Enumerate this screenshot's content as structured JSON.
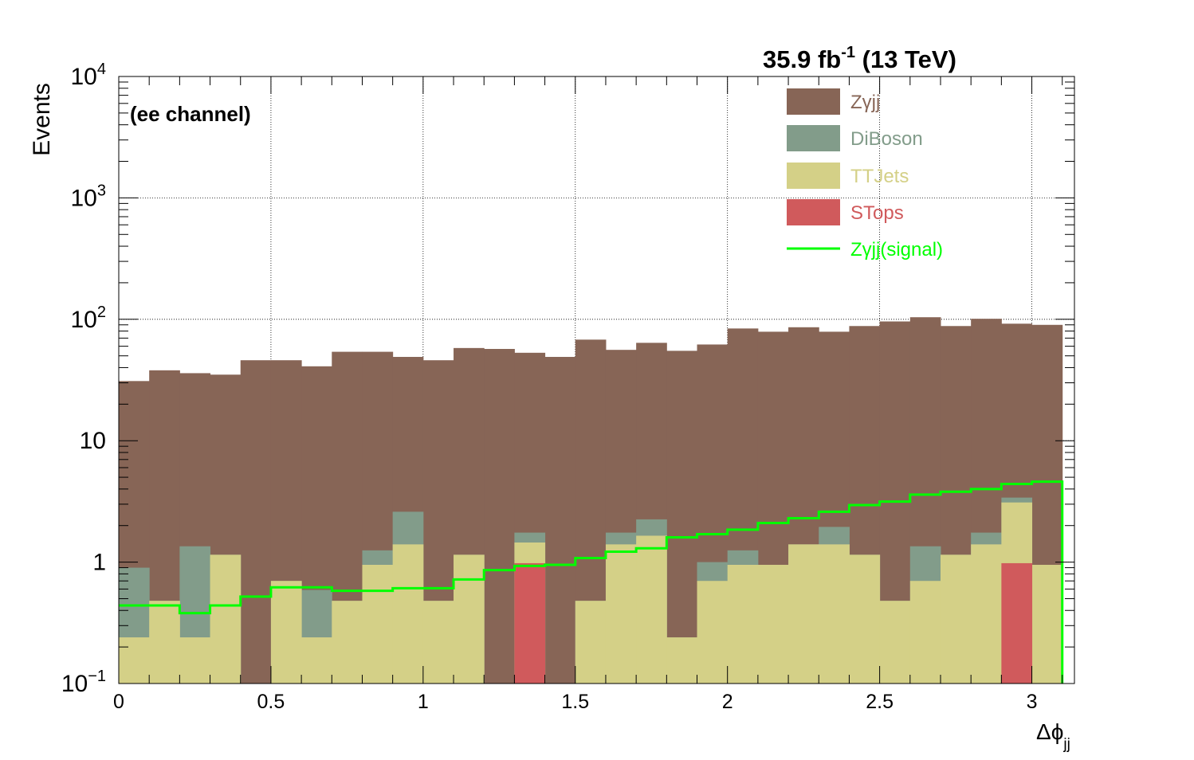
{
  "header": {
    "lumi_base": "35.9 fb",
    "lumi_exp": "-1",
    "lumi_tail": " (13 TeV)",
    "channel": "(ee channel)"
  },
  "axes": {
    "ylabel": "Events",
    "xlabel_main": "Δϕ",
    "xlabel_sub": "jj"
  },
  "y_tick_labels": [
    {
      "base": "10",
      "exp": "−1"
    },
    {
      "base": "1",
      "exp": ""
    },
    {
      "base": "10",
      "exp": ""
    },
    {
      "base": "10",
      "exp": "2"
    },
    {
      "base": "10",
      "exp": "3"
    },
    {
      "base": "10",
      "exp": "4"
    }
  ],
  "x_tick_labels": [
    "0",
    "0.5",
    "1",
    "1.5",
    "2",
    "2.5",
    "3"
  ],
  "colors": {
    "zgjj": "#876556",
    "diboson": "#829c8a",
    "ttjets": "#d4d087",
    "stops": "#d05a5c",
    "signal": "#00ff00"
  },
  "chart_data": {
    "type": "bar",
    "stacked": true,
    "log_y": true,
    "ylim": [
      0.1,
      10000
    ],
    "xlim": [
      0,
      3.14
    ],
    "grid": true,
    "legend_position": "top-right",
    "bin_edges": [
      0,
      0.1,
      0.2,
      0.3,
      0.4,
      0.5,
      0.6,
      0.7,
      0.8,
      0.9,
      1.0,
      1.1,
      1.2,
      1.3,
      1.4,
      1.5,
      1.6,
      1.7,
      1.8,
      1.9,
      2.0,
      2.1,
      2.2,
      2.3,
      2.4,
      2.5,
      2.6,
      2.7,
      2.8,
      2.9,
      3.0,
      3.1
    ],
    "stack_order": [
      "STops",
      "TTJets",
      "DiBoson",
      "Zγjj"
    ],
    "series": [
      {
        "name": "Zγjj",
        "color_key": "zgjj",
        "cumulative_totals": [
          31,
          38,
          36,
          35,
          46,
          46,
          41,
          54,
          54,
          49,
          46,
          58,
          57,
          53,
          49,
          68,
          56,
          64,
          55,
          62,
          84,
          79,
          86,
          79,
          88,
          96,
          104,
          88,
          101,
          92,
          90
        ]
      },
      {
        "name": "DiBoson",
        "color_key": "diboson",
        "cumulative_totals": [
          0.9,
          0.48,
          1.35,
          1.15,
          0,
          0.7,
          0.59,
          0.48,
          1.25,
          2.6,
          0.48,
          1.15,
          0,
          1.75,
          0,
          0.48,
          1.75,
          2.25,
          0.24,
          1.0,
          1.25,
          0.95,
          1.4,
          1.95,
          1.15,
          0.48,
          1.35,
          1.15,
          1.75,
          3.4,
          0.95
        ]
      },
      {
        "name": "TTJets",
        "color_key": "ttjets",
        "cumulative_totals": [
          0.24,
          0.48,
          0.24,
          1.15,
          0,
          0.7,
          0.24,
          0.48,
          0.95,
          1.4,
          0.48,
          1.15,
          0,
          1.45,
          0,
          0.48,
          1.4,
          1.65,
          0.24,
          0.7,
          0.95,
          0.95,
          1.4,
          1.4,
          1.15,
          0.48,
          0.7,
          1.15,
          1.4,
          3.1,
          0.95
        ]
      },
      {
        "name": "STops",
        "color_key": "stops",
        "cumulative_totals": [
          0,
          0,
          0,
          0,
          0,
          0,
          0,
          0,
          0,
          0,
          0,
          0,
          0,
          0.98,
          0,
          0,
          0,
          0,
          0,
          0,
          0,
          0,
          0,
          0,
          0,
          0,
          0,
          0,
          0,
          0.98,
          0
        ]
      }
    ],
    "signal": {
      "name": "Zγjj(signal)",
      "color_key": "signal",
      "values": [
        0.44,
        0.44,
        0.38,
        0.44,
        0.52,
        0.62,
        0.62,
        0.58,
        0.58,
        0.61,
        0.61,
        0.72,
        0.86,
        0.93,
        0.95,
        1.08,
        1.22,
        1.3,
        1.6,
        1.7,
        1.85,
        2.1,
        2.3,
        2.6,
        2.95,
        3.15,
        3.6,
        3.8,
        4.0,
        4.4,
        4.6
      ]
    }
  }
}
